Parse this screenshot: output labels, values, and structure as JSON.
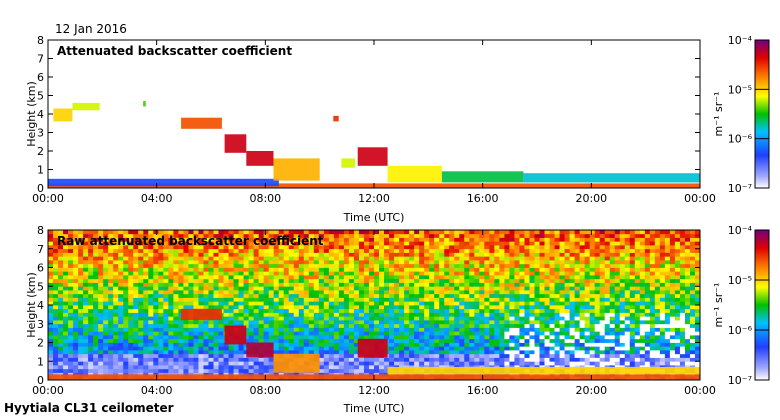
{
  "header": {
    "date": "12 Jan 2016"
  },
  "footer": {
    "instrument": "Hyytiala CL31 ceilometer"
  },
  "colorbar": {
    "unit_label": "m⁻¹ sr⁻¹",
    "tick_labels": [
      "10⁻⁴",
      "10⁻⁵",
      "10⁻⁶",
      "10⁻⁷"
    ],
    "tick_values": [
      -4,
      -5,
      -6,
      -7
    ]
  },
  "chart_data": [
    {
      "type": "heatmap",
      "title": "Attenuated backscatter coefficient",
      "xlabel": "Time (UTC)",
      "ylabel": "Height (km)",
      "xlim_hours": [
        0,
        24
      ],
      "ylim_km": [
        0,
        8
      ],
      "x_tick_labels": [
        "00:00",
        "04:00",
        "08:00",
        "12:00",
        "16:00",
        "20:00",
        "00:00"
      ],
      "x_tick_hours": [
        0,
        4,
        8,
        12,
        16,
        20,
        24
      ],
      "y_tick_labels": [
        "0",
        "1",
        "2",
        "3",
        "4",
        "5",
        "6",
        "7",
        "8"
      ],
      "y_tick_km": [
        0,
        1,
        2,
        3,
        4,
        5,
        6,
        7,
        8
      ],
      "colorbar_log10_range": [
        -7,
        -4
      ],
      "noise": false,
      "features": [
        {
          "name": "surface-layer",
          "t0": 0,
          "t1": 24,
          "h0": 0,
          "h1": 0.25,
          "log10": -4.6
        },
        {
          "name": "boundary-layer-blue",
          "t0": 0,
          "t1": 8.5,
          "h0": 0.1,
          "h1": 0.5,
          "log10": -6.3
        },
        {
          "name": "cloud-0000",
          "t0": 0.2,
          "t1": 0.9,
          "h0": 3.6,
          "h1": 4.3,
          "log10": -5.0
        },
        {
          "name": "cloud-0100",
          "t0": 0.9,
          "t1": 1.9,
          "h0": 4.2,
          "h1": 4.6,
          "log10": -5.2
        },
        {
          "name": "cloud-0330",
          "t0": 3.5,
          "t1": 3.6,
          "h0": 4.4,
          "h1": 4.7,
          "log10": -5.4
        },
        {
          "name": "cloud-0500",
          "t0": 4.9,
          "t1": 6.4,
          "h0": 3.2,
          "h1": 3.8,
          "log10": -4.6
        },
        {
          "name": "cloud-0630",
          "t0": 6.5,
          "t1": 7.3,
          "h0": 1.9,
          "h1": 2.9,
          "log10": -4.3
        },
        {
          "name": "cloud-0730",
          "t0": 7.3,
          "t1": 8.3,
          "h0": 1.2,
          "h1": 2.0,
          "log10": -4.3
        },
        {
          "name": "cloud-0830",
          "t0": 8.3,
          "t1": 10.0,
          "h0": 0.4,
          "h1": 1.6,
          "log10": -4.9
        },
        {
          "name": "cloud-1030",
          "t0": 10.5,
          "t1": 10.7,
          "h0": 3.6,
          "h1": 3.9,
          "log10": -4.5
        },
        {
          "name": "cloud-1100",
          "t0": 10.8,
          "t1": 11.3,
          "h0": 1.1,
          "h1": 1.6,
          "log10": -5.2
        },
        {
          "name": "cloud-1200",
          "t0": 11.4,
          "t1": 12.5,
          "h0": 1.2,
          "h1": 2.2,
          "log10": -4.3
        },
        {
          "name": "cloud-1230",
          "t0": 12.5,
          "t1": 14.5,
          "h0": 0.3,
          "h1": 1.2,
          "log10": -5.1
        },
        {
          "name": "cloud-1500",
          "t0": 14.5,
          "t1": 17.5,
          "h0": 0.3,
          "h1": 0.9,
          "log10": -5.6
        },
        {
          "name": "cloud-1800",
          "t0": 17.5,
          "t1": 24,
          "h0": 0.3,
          "h1": 0.8,
          "log10": -5.8
        }
      ]
    },
    {
      "type": "heatmap",
      "title": "Raw attenuated backscatter coefficient",
      "xlabel": "Time (UTC)",
      "ylabel": "Height (km)",
      "xlim_hours": [
        0,
        24
      ],
      "ylim_km": [
        0,
        8
      ],
      "x_tick_labels": [
        "00:00",
        "04:00",
        "08:00",
        "12:00",
        "16:00",
        "20:00",
        "00:00"
      ],
      "x_tick_hours": [
        0,
        4,
        8,
        12,
        16,
        20,
        24
      ],
      "y_tick_labels": [
        "0",
        "1",
        "2",
        "3",
        "4",
        "5",
        "6",
        "7",
        "8"
      ],
      "y_tick_km": [
        0,
        1,
        2,
        3,
        4,
        5,
        6,
        7,
        8
      ],
      "colorbar_log10_range": [
        -7,
        -4
      ],
      "noise": true,
      "features": [
        {
          "name": "surface-layer",
          "t0": 0,
          "t1": 24,
          "h0": 0,
          "h1": 0.3,
          "log10": -4.6
        },
        {
          "name": "cloud-0500",
          "t0": 4.9,
          "t1": 6.4,
          "h0": 3.2,
          "h1": 3.8,
          "log10": -4.5
        },
        {
          "name": "cloud-0630",
          "t0": 6.5,
          "t1": 7.3,
          "h0": 1.9,
          "h1": 2.9,
          "log10": -4.3
        },
        {
          "name": "cloud-0730",
          "t0": 7.3,
          "t1": 8.3,
          "h0": 1.2,
          "h1": 2.0,
          "log10": -4.2
        },
        {
          "name": "cloud-0830",
          "t0": 8.3,
          "t1": 10.0,
          "h0": 0.4,
          "h1": 1.4,
          "log10": -4.8
        },
        {
          "name": "cloud-1200",
          "t0": 11.4,
          "t1": 12.5,
          "h0": 1.2,
          "h1": 2.2,
          "log10": -4.3
        },
        {
          "name": "cloud-1230",
          "t0": 12.5,
          "t1": 24,
          "h0": 0.3,
          "h1": 0.7,
          "log10": -5.0
        }
      ]
    }
  ]
}
